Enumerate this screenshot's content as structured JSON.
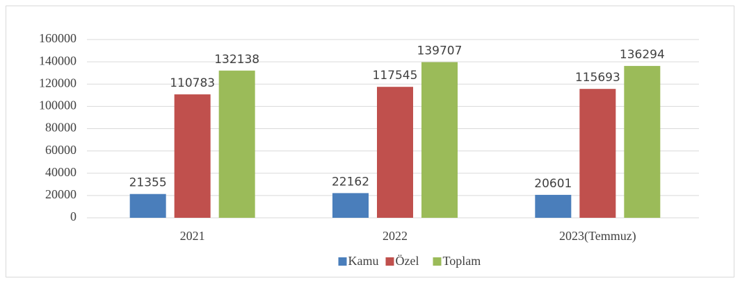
{
  "chart_data": {
    "type": "bar",
    "categories": [
      "2021",
      "2022",
      "2023(Temmuz)"
    ],
    "series": [
      {
        "name": "Kamu",
        "color": "#4a7ebb",
        "values": [
          21355,
          22162,
          20601
        ]
      },
      {
        "name": "Özel",
        "color": "#c0504d",
        "values": [
          110783,
          117545,
          115693
        ]
      },
      {
        "name": "Toplam",
        "color": "#9bbb59",
        "values": [
          132138,
          139707,
          136294
        ]
      }
    ],
    "ylim": [
      0,
      160000
    ],
    "yticks": [
      0,
      20000,
      40000,
      60000,
      80000,
      100000,
      120000,
      140000,
      160000
    ],
    "grid": true,
    "legend": "bottom"
  }
}
